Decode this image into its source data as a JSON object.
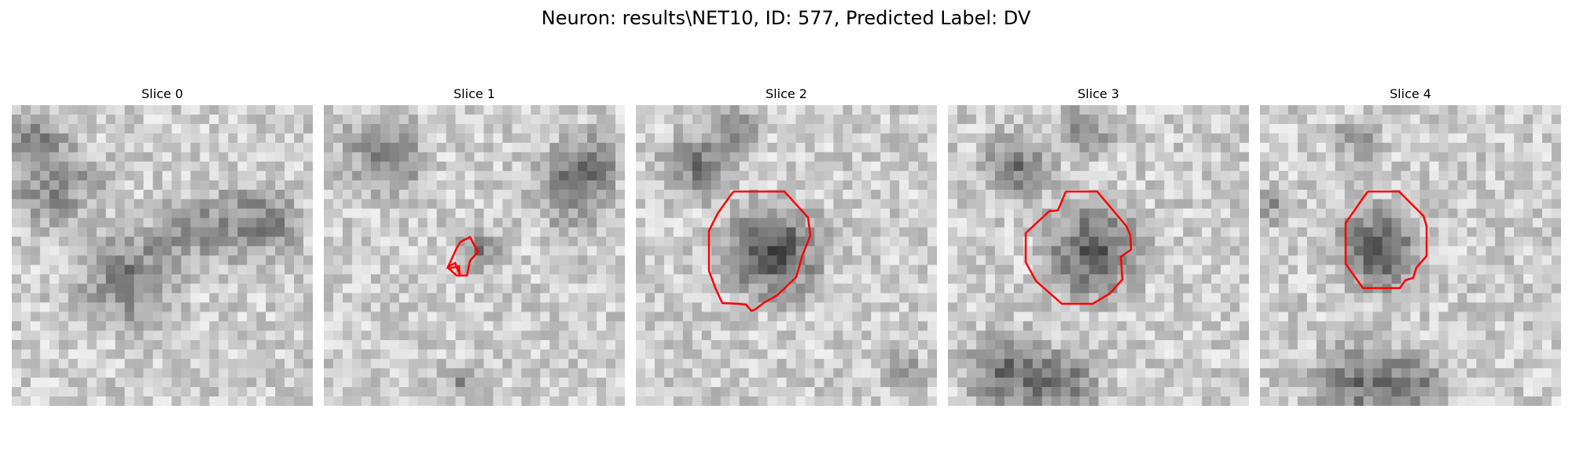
{
  "figure": {
    "title": "Neuron: results\\NET10, ID: 577, Predicted Label: DV",
    "contour_color": "#ff0000"
  },
  "panels": [
    {
      "title": "Slice 0",
      "has_contour": false
    },
    {
      "title": "Slice 1",
      "has_contour": true
    },
    {
      "title": "Slice 2",
      "has_contour": true
    },
    {
      "title": "Slice 3",
      "has_contour": true
    },
    {
      "title": "Slice 4",
      "has_contour": true
    }
  ]
}
